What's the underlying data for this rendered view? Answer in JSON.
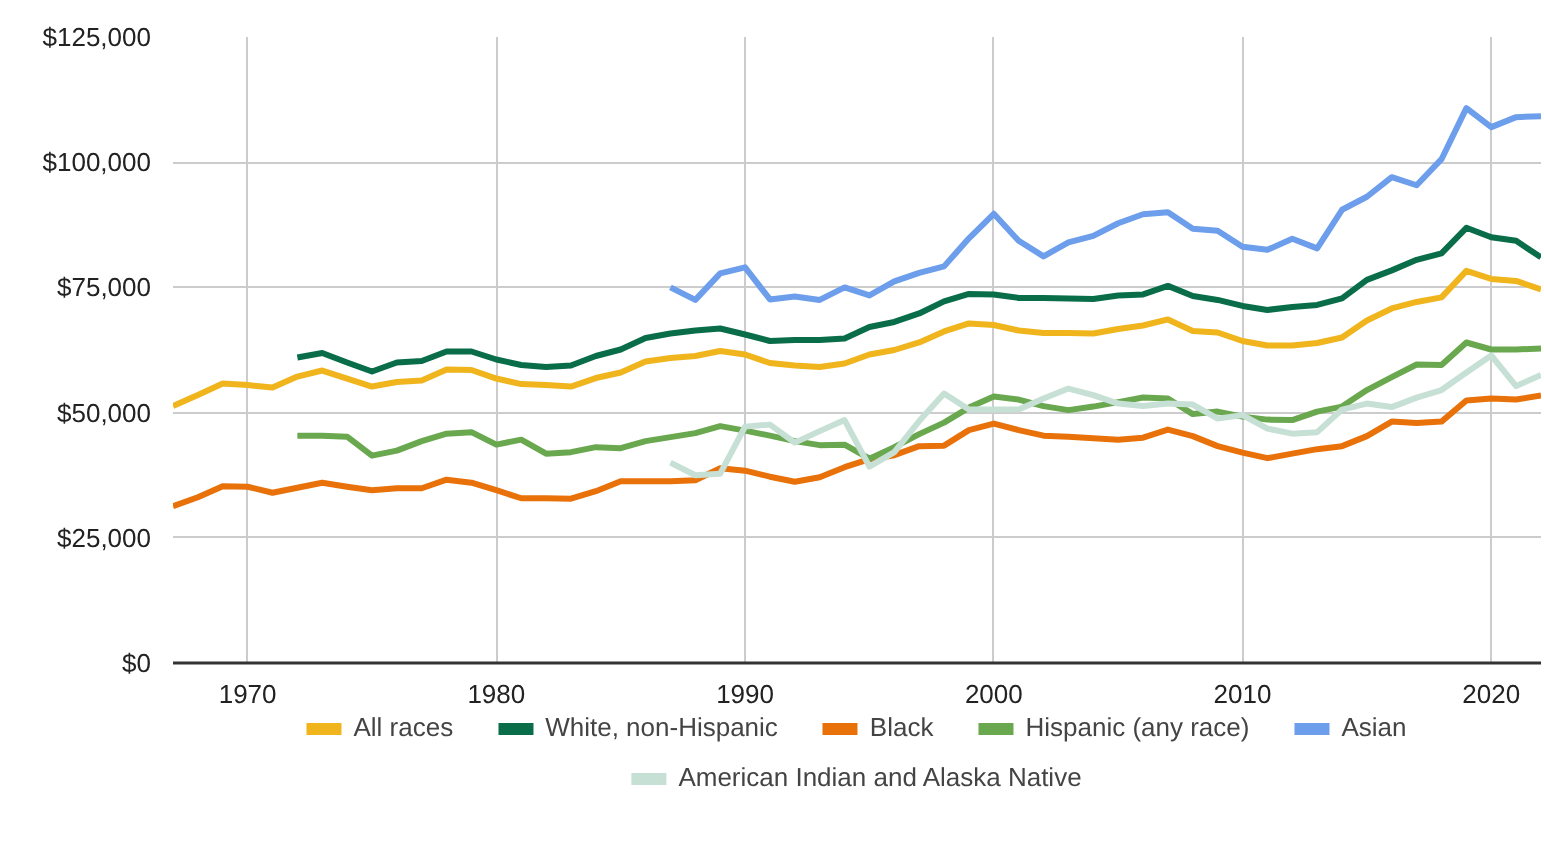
{
  "chart_data": {
    "type": "line",
    "x": [
      1967,
      1968,
      1969,
      1970,
      1971,
      1972,
      1973,
      1974,
      1975,
      1976,
      1977,
      1978,
      1979,
      1980,
      1981,
      1982,
      1983,
      1984,
      1985,
      1986,
      1987,
      1988,
      1989,
      1990,
      1991,
      1992,
      1993,
      1994,
      1995,
      1996,
      1997,
      1998,
      1999,
      2000,
      2001,
      2002,
      2003,
      2004,
      2005,
      2006,
      2007,
      2008,
      2009,
      2010,
      2011,
      2012,
      2013,
      2014,
      2015,
      2016,
      2017,
      2018,
      2019,
      2020,
      2021,
      2022
    ],
    "xlim": [
      1967,
      2022
    ],
    "xticks": [
      1970,
      1980,
      1990,
      2000,
      2010,
      2020
    ],
    "ylim": [
      0,
      125000
    ],
    "yticks": [
      {
        "value": 0,
        "label": "$0"
      },
      {
        "value": 25000,
        "label": "$25,000"
      },
      {
        "value": 50000,
        "label": "$50,000"
      },
      {
        "value": 75000,
        "label": "$75,000"
      },
      {
        "value": 100000,
        "label": "$100,000"
      },
      {
        "value": 125000,
        "label": "$125,000"
      }
    ],
    "grid": true,
    "legend": "bottom",
    "line_style": "solid",
    "series": [
      {
        "name": "All races",
        "color": "#f0b41d",
        "values": [
          51300,
          53500,
          55800,
          55500,
          55000,
          57200,
          58400,
          56800,
          55200,
          56100,
          56400,
          58600,
          58500,
          56800,
          55700,
          55500,
          55200,
          56900,
          58000,
          60200,
          60900,
          61300,
          62300,
          61600,
          59900,
          59400,
          59100,
          59800,
          61600,
          62500,
          64000,
          66200,
          67800,
          67500,
          66400,
          65900,
          65900,
          65800,
          66700,
          67400,
          68600,
          66300,
          66000,
          64300,
          63400,
          63400,
          63900,
          65000,
          68400,
          70800,
          72100,
          73000,
          78300,
          76700,
          76300,
          74600
        ]
      },
      {
        "name": "White, non-Hispanic",
        "color": "#0a6d4a",
        "values": [
          null,
          null,
          null,
          null,
          null,
          61000,
          61900,
          60000,
          58200,
          60000,
          60300,
          62200,
          62200,
          60600,
          59500,
          59100,
          59400,
          61300,
          62600,
          64900,
          65800,
          66400,
          66800,
          65600,
          64300,
          64500,
          64500,
          64800,
          67100,
          68100,
          69800,
          72200,
          73700,
          73600,
          72900,
          72900,
          72800,
          72700,
          73400,
          73600,
          75300,
          73300,
          72500,
          71300,
          70500,
          71100,
          71500,
          72800,
          76500,
          78400,
          80500,
          81800,
          86900,
          85000,
          84300,
          81000
        ]
      },
      {
        "name": "Black",
        "color": "#e8710a",
        "values": [
          31300,
          33100,
          35300,
          35200,
          34000,
          35000,
          36000,
          35200,
          34500,
          34900,
          34900,
          36600,
          36000,
          34500,
          32900,
          32900,
          32800,
          34300,
          36300,
          36300,
          36300,
          36500,
          38900,
          38400,
          37200,
          36200,
          37100,
          39100,
          40700,
          41500,
          43300,
          43400,
          46500,
          47800,
          46500,
          45400,
          45200,
          44900,
          44600,
          45000,
          46600,
          45300,
          43300,
          42000,
          40900,
          41800,
          42700,
          43300,
          45300,
          48200,
          47900,
          48200,
          52400,
          52800,
          52600,
          53400
        ]
      },
      {
        "name": "Hispanic (any race)",
        "color": "#6aa84f",
        "values": [
          null,
          null,
          null,
          null,
          null,
          45400,
          45400,
          45200,
          41400,
          42400,
          44300,
          45800,
          46100,
          43600,
          44600,
          41800,
          42100,
          43100,
          42900,
          44300,
          45100,
          45900,
          47300,
          46400,
          45400,
          44300,
          43500,
          43600,
          40800,
          43100,
          45700,
          48000,
          51000,
          53200,
          52600,
          51300,
          50500,
          51200,
          52100,
          53000,
          52800,
          49700,
          50200,
          49200,
          48600,
          48500,
          50200,
          51200,
          54500,
          57100,
          59600,
          59500,
          64000,
          62600,
          62600,
          62800
        ]
      },
      {
        "name": "Asian",
        "color": "#6d9eeb",
        "values": [
          null,
          null,
          null,
          null,
          null,
          null,
          null,
          null,
          null,
          null,
          null,
          null,
          null,
          null,
          null,
          null,
          null,
          null,
          null,
          null,
          75000,
          72500,
          77800,
          79000,
          72600,
          73200,
          72500,
          75000,
          73400,
          76200,
          77900,
          79200,
          84800,
          89700,
          84300,
          81200,
          84000,
          85300,
          87800,
          89600,
          90000,
          86700,
          86300,
          83100,
          82500,
          84700,
          82800,
          90500,
          93100,
          97000,
          95400,
          100600,
          110800,
          107000,
          109000,
          109200
        ]
      },
      {
        "name": "American Indian and Alaska Native",
        "color": "#c7e0d5",
        "values": [
          null,
          null,
          null,
          null,
          null,
          null,
          null,
          null,
          null,
          null,
          null,
          null,
          null,
          null,
          null,
          null,
          null,
          null,
          null,
          null,
          40000,
          37500,
          37800,
          47200,
          47600,
          44000,
          46300,
          48500,
          39200,
          42100,
          48300,
          53800,
          50600,
          50600,
          50600,
          52800,
          54800,
          53500,
          51800,
          51300,
          51800,
          51600,
          48800,
          49500,
          46800,
          45800,
          46100,
          50600,
          51800,
          51100,
          53000,
          54500,
          58000,
          61400,
          55300,
          57500
        ]
      }
    ]
  }
}
